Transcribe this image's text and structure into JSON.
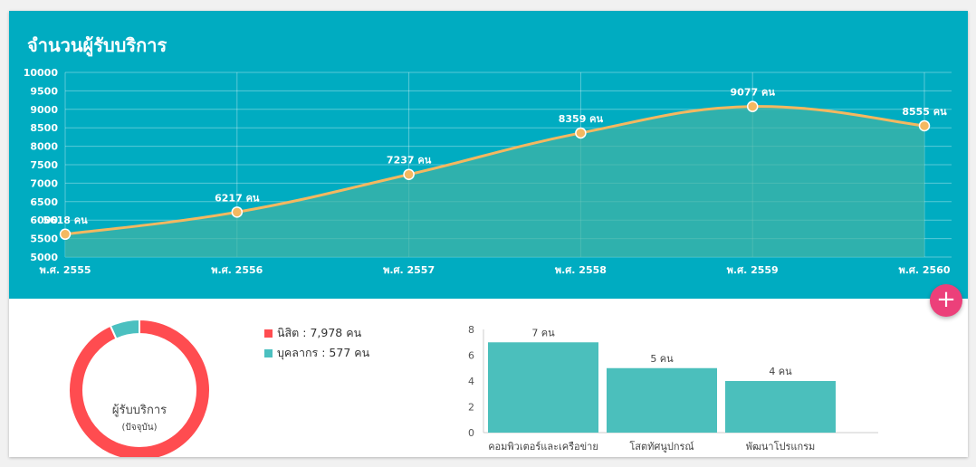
{
  "header": {
    "title": "จำนวนผู้รับบริการ"
  },
  "fab": {
    "label": "+"
  },
  "colors": {
    "header_bg": "#00acc1",
    "line": "#f4b860",
    "area": "#43b3a4",
    "nisit": "#ff4c50",
    "staff": "#4bc0c0",
    "bar": "#4bbfbc",
    "fab": "#ec407a"
  },
  "donut": {
    "center_label": "ผู้รับบริการ",
    "center_sub": "(ปัจจุบัน)",
    "legend": [
      {
        "label": "นิสิต : 7,978 คน",
        "color": "#ff4c50"
      },
      {
        "label": "บุคลากร : 577 คน",
        "color": "#4bc0c0"
      }
    ]
  },
  "chart_data": [
    {
      "type": "line",
      "title": "จำนวนผู้รับบริการ",
      "categories": [
        "พ.ศ. 2555",
        "พ.ศ. 2556",
        "พ.ศ. 2557",
        "พ.ศ. 2558",
        "พ.ศ. 2559",
        "พ.ศ. 2560"
      ],
      "values": [
        5618,
        6217,
        7237,
        8359,
        9077,
        8555
      ],
      "data_labels": [
        "5618 คน",
        "6217 คน",
        "7237 คน",
        "8359 คน",
        "9077 คน",
        "8555 คน"
      ],
      "ylim": [
        5000,
        10000
      ],
      "yticks": [
        5000,
        5500,
        6000,
        6500,
        7000,
        7500,
        8000,
        8500,
        9000,
        9500,
        10000
      ],
      "grid": true,
      "fill": true
    },
    {
      "type": "pie",
      "labels": [
        "นิสิต",
        "บุคลากร"
      ],
      "values": [
        7978,
        577
      ]
    },
    {
      "type": "bar",
      "categories": [
        "คอมพิวเตอร์และเครือข่าย",
        "โสตทัศนูปกรณ์",
        "พัฒนาโปรแกรม"
      ],
      "values": [
        7,
        5,
        4
      ],
      "data_labels": [
        "7 คน",
        "5 คน",
        "4 คน"
      ],
      "ylim": [
        0,
        8
      ],
      "yticks": [
        0,
        2,
        4,
        6,
        8
      ]
    }
  ]
}
